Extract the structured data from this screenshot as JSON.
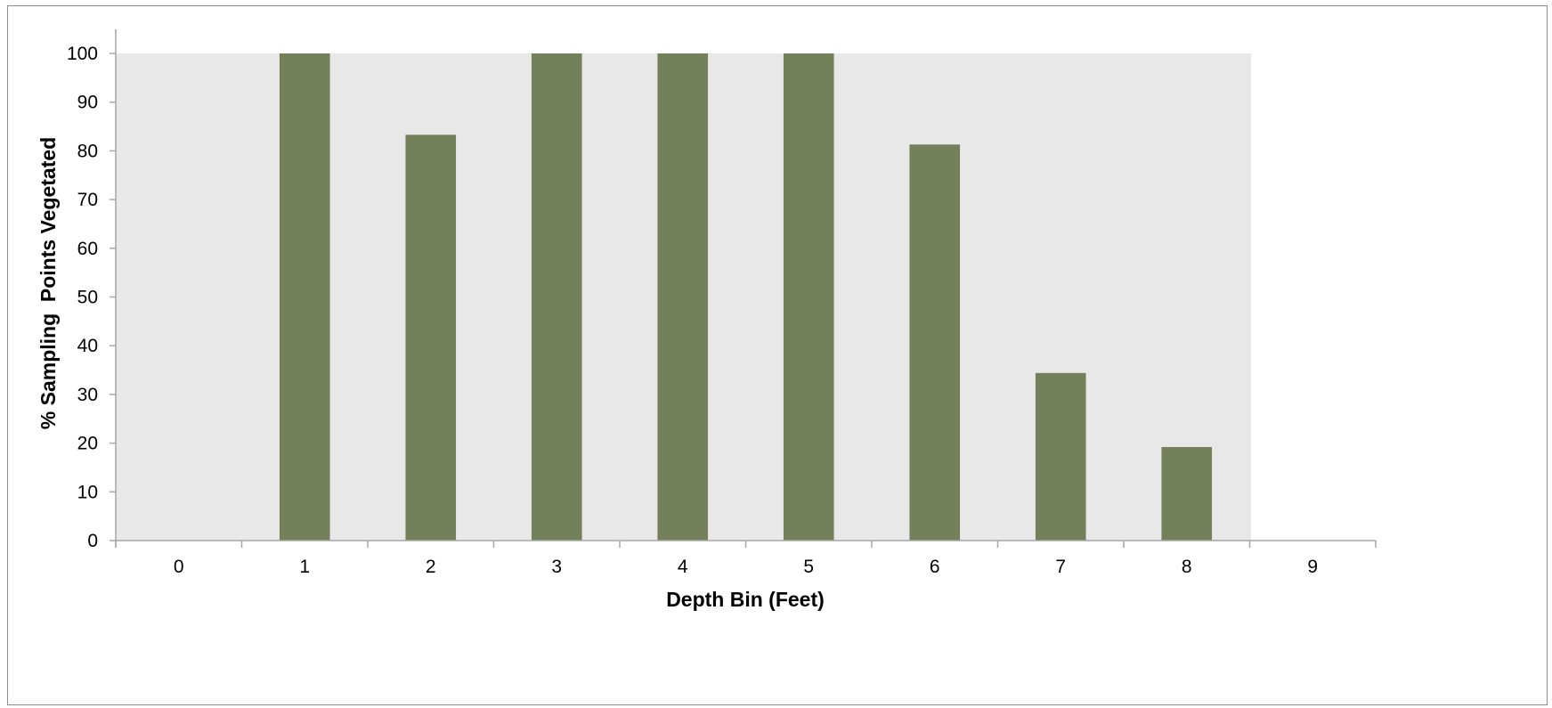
{
  "chart_data": {
    "type": "bar",
    "title": "",
    "xlabel": "Depth Bin (Feet)",
    "ylabel": "% Sampling  Points Vegetated",
    "categories": [
      "0",
      "1",
      "2",
      "3",
      "4",
      "5",
      "6",
      "7",
      "8",
      "9"
    ],
    "values": [
      null,
      100,
      83.3,
      100,
      100,
      100,
      81.3,
      34.4,
      19.2,
      null
    ],
    "ylim": [
      0,
      100
    ],
    "yticks": [
      "0",
      "10",
      "20",
      "30",
      "40",
      "50",
      "60",
      "70",
      "80",
      "90",
      "100"
    ],
    "grid": false,
    "legend": "none",
    "colors": {
      "bar": "#738059",
      "plot_background": "#e8e8e8",
      "axis": "#a6a6a6"
    }
  }
}
